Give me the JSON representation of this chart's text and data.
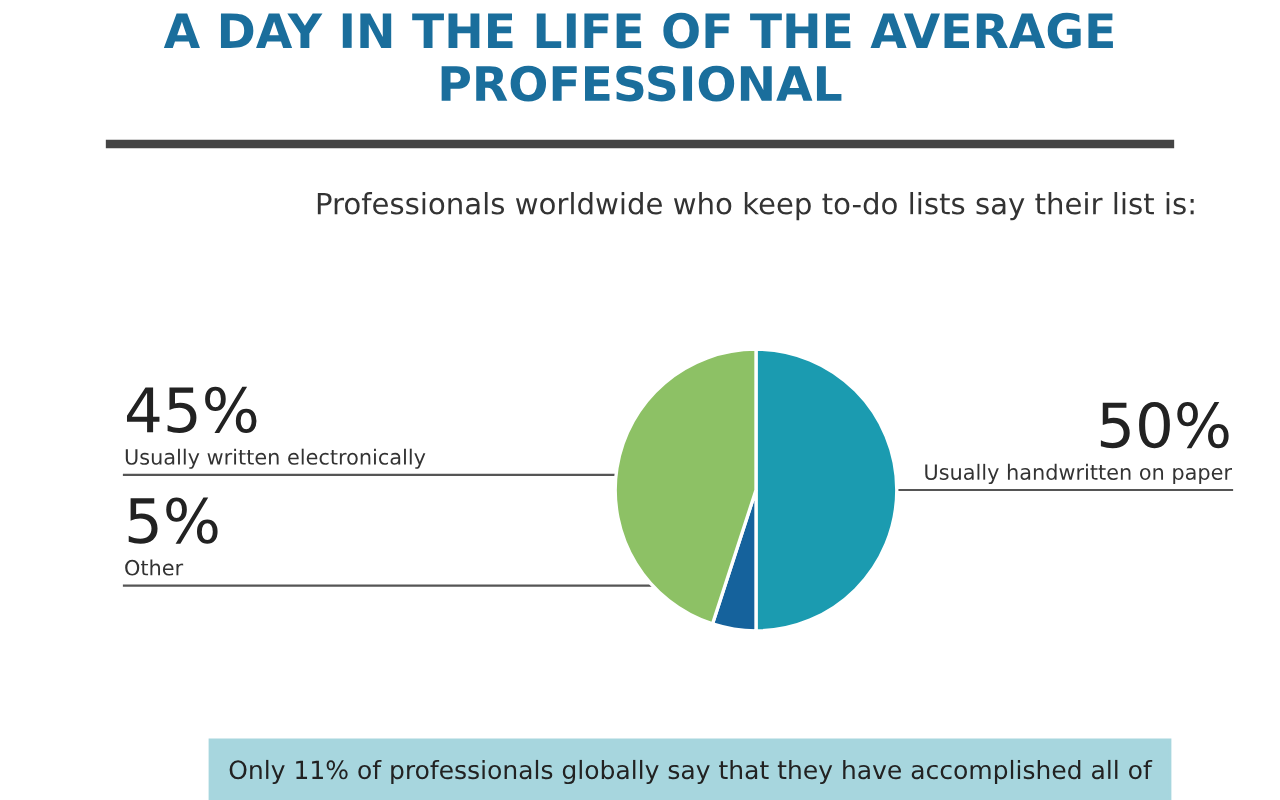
{
  "chart_data": {
    "type": "pie",
    "title": "A DAY IN THE LIFE OF THE AVERAGE PROFESSIONAL",
    "subtitle": "Professionals worldwide who keep to-do lists say their list is:",
    "categories": [
      "Usually handwritten on paper",
      "Other",
      "Usually written electronically"
    ],
    "values": [
      50,
      5,
      45
    ],
    "colors": [
      "#1b9bb0",
      "#15629c",
      "#8dc165"
    ],
    "value_labels": [
      "50%",
      "5%",
      "45%"
    ],
    "annotations": [
      "Only 11% of professionals globally say that they have accomplished all of"
    ]
  }
}
